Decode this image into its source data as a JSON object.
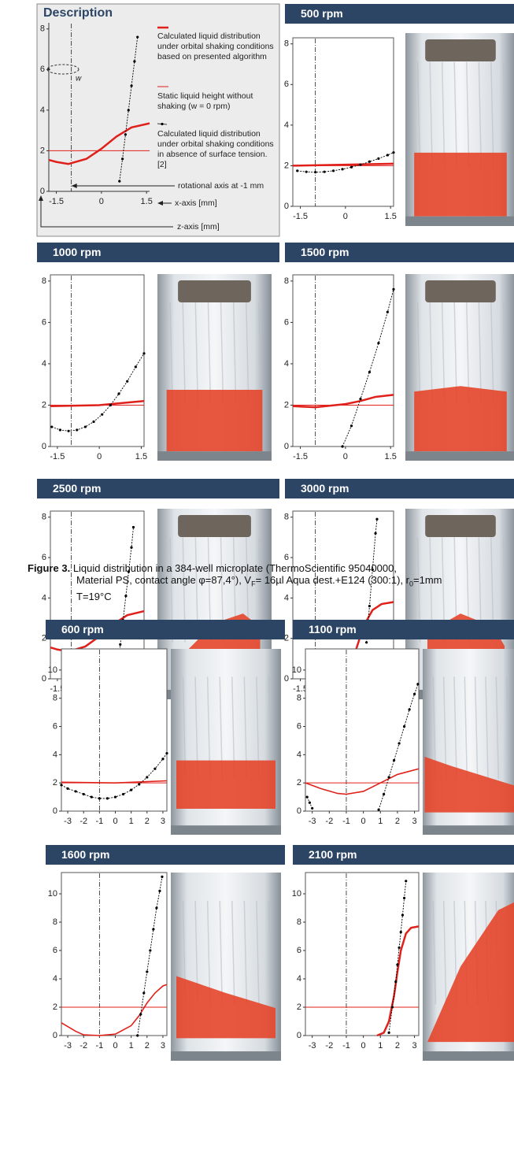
{
  "chart_data": [
    {
      "type": "line",
      "title": "Description",
      "xlim": [
        -1.75,
        1.6
      ],
      "ylim": [
        0,
        8.3
      ],
      "xticks": [
        -1.5,
        0,
        1.5
      ],
      "yticks": [
        0,
        2,
        4,
        6,
        8
      ],
      "frame": false,
      "reference_x": -1,
      "series": [
        {
          "name": "Calculated liquid distribution under orbital shaking conditions based on presented algorithm",
          "color": "#e0201b",
          "style": "bold-line",
          "x": [
            -1.75,
            -1.5,
            -1.1,
            -0.5,
            0,
            0.5,
            1,
            1.6
          ],
          "values": [
            1.55,
            1.45,
            1.35,
            1.6,
            2.1,
            2.7,
            3.15,
            3.35
          ]
        },
        {
          "name": "Static liquid height without shaking (w = 0 rpm)",
          "color": "#e0201b",
          "style": "thin-line",
          "x": [
            -1.75,
            1.6
          ],
          "values": [
            2,
            2
          ]
        },
        {
          "name": "Calculated liquid distribution under orbital shaking conditions in absence of surface tension. [2]",
          "color": "#000000",
          "style": "dotted-markers",
          "x": [
            0.6,
            0.7,
            0.8,
            0.9,
            1.0,
            1.1,
            1.2
          ],
          "values": [
            0.5,
            1.6,
            2.8,
            4.0,
            5.2,
            6.4,
            7.6
          ]
        }
      ],
      "annotations": {
        "rotation": "w",
        "axis_note": "rotational axis at -1 mm",
        "x_axis": "x-axis [mm]",
        "z_axis": "z-axis [mm]"
      }
    },
    {
      "type": "line",
      "title": "500 rpm",
      "xlim": [
        -1.75,
        1.6
      ],
      "ylim": [
        0,
        8.3
      ],
      "xticks": [
        -1.5,
        0,
        1.5
      ],
      "yticks": [
        0,
        2,
        4,
        6,
        8
      ],
      "frame": true,
      "reference_x": -1,
      "series": [
        {
          "color": "#e0201b",
          "style": "bold-line",
          "x": [
            -1.75,
            0,
            1.6
          ],
          "values": [
            2.0,
            2.05,
            2.1
          ]
        },
        {
          "color": "#e0201b",
          "style": "thin-line",
          "x": [
            -1.75,
            1.6
          ],
          "values": [
            2,
            2
          ]
        },
        {
          "color": "#000000",
          "style": "dotted-markers",
          "x": [
            -1.6,
            -1.3,
            -1.0,
            -0.7,
            -0.4,
            -0.1,
            0.2,
            0.5,
            0.8,
            1.1,
            1.4,
            1.6
          ],
          "values": [
            1.75,
            1.7,
            1.68,
            1.7,
            1.75,
            1.83,
            1.93,
            2.05,
            2.2,
            2.35,
            2.52,
            2.65
          ]
        }
      ]
    },
    {
      "type": "line",
      "title": "1000 rpm",
      "xlim": [
        -1.75,
        1.6
      ],
      "ylim": [
        0,
        8.3
      ],
      "xticks": [
        -1.5,
        0,
        1.5
      ],
      "yticks": [
        0,
        2,
        4,
        6,
        8
      ],
      "frame": true,
      "reference_x": -1,
      "series": [
        {
          "color": "#e0201b",
          "style": "bold-line",
          "x": [
            -1.75,
            0,
            1.6
          ],
          "values": [
            1.95,
            2.0,
            2.2
          ]
        },
        {
          "color": "#e0201b",
          "style": "thin-line",
          "x": [
            -1.75,
            1.6
          ],
          "values": [
            2,
            2
          ]
        },
        {
          "color": "#000000",
          "style": "dotted-markers",
          "x": [
            -1.7,
            -1.4,
            -1.1,
            -0.8,
            -0.5,
            -0.2,
            0.1,
            0.4,
            0.7,
            1.0,
            1.3,
            1.6
          ],
          "values": [
            0.95,
            0.8,
            0.75,
            0.8,
            0.95,
            1.2,
            1.55,
            2.0,
            2.55,
            3.15,
            3.85,
            4.5
          ]
        }
      ]
    },
    {
      "type": "line",
      "title": "1500 rpm",
      "xlim": [
        -1.75,
        1.6
      ],
      "ylim": [
        0,
        8.3
      ],
      "xticks": [
        -1.5,
        0,
        1.5
      ],
      "yticks": [
        0,
        2,
        4,
        6,
        8
      ],
      "frame": true,
      "reference_x": -1,
      "series": [
        {
          "color": "#e0201b",
          "style": "bold-line",
          "x": [
            -1.75,
            -1,
            0,
            0.5,
            1,
            1.6
          ],
          "values": [
            1.95,
            1.9,
            2.05,
            2.2,
            2.4,
            2.5
          ]
        },
        {
          "color": "#e0201b",
          "style": "thin-line",
          "x": [
            -1.75,
            1.6
          ],
          "values": [
            2,
            2
          ]
        },
        {
          "color": "#000000",
          "style": "dotted-markers",
          "x": [
            -0.1,
            0.2,
            0.5,
            0.8,
            1.1,
            1.4,
            1.6
          ],
          "values": [
            0,
            1.0,
            2.3,
            3.6,
            5.0,
            6.5,
            7.6
          ]
        }
      ]
    },
    {
      "type": "line",
      "title": "2500 rpm",
      "xlim": [
        -1.75,
        1.6
      ],
      "ylim": [
        0,
        8.3
      ],
      "xticks": [
        -1.5,
        0,
        1.5
      ],
      "yticks": [
        0,
        2,
        4,
        6,
        8
      ],
      "frame": true,
      "reference_x": -1,
      "series": [
        {
          "color": "#e0201b",
          "style": "bold-line",
          "x": [
            -1.75,
            -1.5,
            -1.1,
            -0.5,
            0,
            0.5,
            1,
            1.6
          ],
          "values": [
            1.55,
            1.45,
            1.35,
            1.6,
            2.1,
            2.7,
            3.15,
            3.35
          ]
        },
        {
          "color": "#e0201b",
          "style": "thin-line",
          "x": [
            -1.75,
            1.6
          ],
          "values": [
            2,
            2
          ]
        },
        {
          "color": "#000000",
          "style": "dotted-markers",
          "x": [
            0.65,
            0.75,
            0.85,
            0.95,
            1.05,
            1.15,
            1.22
          ],
          "values": [
            0.6,
            1.7,
            2.9,
            4.1,
            5.3,
            6.5,
            7.5
          ]
        }
      ]
    },
    {
      "type": "line",
      "title": "3000 rpm",
      "xlim": [
        -1.75,
        1.6
      ],
      "ylim": [
        0,
        8.3
      ],
      "xticks": [
        -1.5,
        0,
        1.5
      ],
      "yticks": [
        0,
        2,
        4,
        6,
        8
      ],
      "frame": true,
      "reference_x": -1,
      "series": [
        {
          "color": "#e0201b",
          "style": "bold-line",
          "x": [
            -0.8,
            -0.3,
            0,
            0.3,
            0.6,
            0.9,
            1.2,
            1.6
          ],
          "values": [
            0,
            0.1,
            0.4,
            1.2,
            2.6,
            3.4,
            3.7,
            3.8
          ]
        },
        {
          "color": "#e0201b",
          "style": "thin-line",
          "x": [
            -1.75,
            1.6
          ],
          "values": [
            2,
            2
          ]
        },
        {
          "color": "#000000",
          "style": "dotted-markers",
          "x": [
            0.7,
            0.8,
            0.9,
            1.0,
            1.05
          ],
          "values": [
            1.8,
            3.6,
            5.4,
            7.2,
            7.9
          ]
        }
      ]
    },
    {
      "type": "line",
      "title": "600 rpm",
      "xlim": [
        -3.4,
        3.25
      ],
      "ylim": [
        0,
        11.5
      ],
      "xticks": [
        -3,
        -2,
        -1,
        0,
        1,
        2,
        3
      ],
      "yticks": [
        0,
        2,
        4,
        6,
        8,
        10
      ],
      "frame": true,
      "reference_x": -1,
      "series": [
        {
          "color": "#e0201b",
          "style": "line",
          "x": [
            -3.4,
            0,
            3.25
          ],
          "values": [
            2.05,
            2.0,
            2.15
          ]
        },
        {
          "color": "#e0201b",
          "style": "thin-line",
          "x": [
            -3.4,
            3.25
          ],
          "values": [
            2,
            2
          ]
        },
        {
          "color": "#000000",
          "style": "dotted-markers",
          "x": [
            -3.4,
            -3,
            -2.5,
            -2,
            -1.5,
            -1,
            -0.5,
            0,
            0.5,
            1,
            1.5,
            2,
            2.5,
            3,
            3.25
          ],
          "values": [
            1.85,
            1.6,
            1.4,
            1.2,
            1.0,
            0.9,
            0.9,
            1.0,
            1.2,
            1.5,
            1.9,
            2.4,
            3.0,
            3.7,
            4.1
          ]
        }
      ]
    },
    {
      "type": "line",
      "title": "1100 rpm",
      "xlim": [
        -3.4,
        3.25
      ],
      "ylim": [
        0,
        11.5
      ],
      "xticks": [
        -3,
        -2,
        -1,
        0,
        1,
        2,
        3
      ],
      "yticks": [
        0,
        2,
        4,
        6,
        8,
        10
      ],
      "frame": true,
      "reference_x": -1,
      "series": [
        {
          "color": "#e0201b",
          "style": "line",
          "x": [
            -3.4,
            -2.5,
            -1.5,
            -1,
            0,
            1,
            2,
            3.25
          ],
          "values": [
            2.0,
            1.6,
            1.25,
            1.2,
            1.4,
            2.0,
            2.6,
            3.0
          ]
        },
        {
          "color": "#e0201b",
          "style": "thin-line",
          "x": [
            -3.4,
            3.25
          ],
          "values": [
            2,
            2
          ]
        },
        {
          "color": "#000000",
          "style": "dotted-markers",
          "x": [
            -3.3,
            -3.15,
            -3.0,
            null,
            0.9,
            1.2,
            1.5,
            1.8,
            2.1,
            2.4,
            2.7,
            3.0,
            3.2
          ],
          "values": [
            1.0,
            0.6,
            0.2,
            null,
            0.1,
            1.2,
            2.4,
            3.6,
            4.8,
            6.0,
            7.2,
            8.3,
            9.0
          ]
        }
      ]
    },
    {
      "type": "line",
      "title": "1600 rpm",
      "xlim": [
        -3.4,
        3.25
      ],
      "ylim": [
        0,
        11.5
      ],
      "xticks": [
        -3,
        -2,
        -1,
        0,
        1,
        2,
        3
      ],
      "yticks": [
        0,
        2,
        4,
        6,
        8,
        10
      ],
      "frame": true,
      "reference_x": -1,
      "series": [
        {
          "color": "#e0201b",
          "style": "line",
          "x": [
            -3.4,
            -2.5,
            -2,
            -1,
            0,
            1,
            1.5,
            2,
            2.5,
            3,
            3.25
          ],
          "values": [
            0.9,
            0.3,
            0.05,
            0,
            0.1,
            0.7,
            1.4,
            2.3,
            3.0,
            3.5,
            3.6
          ]
        },
        {
          "color": "#e0201b",
          "style": "thin-line",
          "x": [
            -3.4,
            3.25
          ],
          "values": [
            2,
            2
          ]
        },
        {
          "color": "#000000",
          "style": "dotted-markers",
          "x": [
            1.4,
            1.6,
            1.8,
            2.0,
            2.2,
            2.4,
            2.6,
            2.8,
            2.95
          ],
          "values": [
            0,
            1.5,
            3.0,
            4.5,
            6.0,
            7.5,
            9.0,
            10.2,
            11.2
          ]
        }
      ]
    },
    {
      "type": "line",
      "title": "2100 rpm",
      "xlim": [
        -3.4,
        3.25
      ],
      "ylim": [
        0,
        11.5
      ],
      "xticks": [
        -3,
        -2,
        -1,
        0,
        1,
        2,
        3
      ],
      "yticks": [
        0,
        2,
        4,
        6,
        8,
        10
      ],
      "frame": true,
      "reference_x": -1,
      "series": [
        {
          "color": "#e0201b",
          "style": "bold-line",
          "x": [
            0.8,
            1.2,
            1.5,
            1.8,
            2.0,
            2.2,
            2.5,
            2.8,
            3.25
          ],
          "values": [
            0,
            0.2,
            1.0,
            2.8,
            4.5,
            6.0,
            7.2,
            7.6,
            7.7
          ]
        },
        {
          "color": "#e0201b",
          "style": "thin-line",
          "x": [
            -3.4,
            3.25
          ],
          "values": [
            2,
            2
          ]
        },
        {
          "color": "#000000",
          "style": "dotted-markers",
          "x": [
            1.5,
            1.7,
            1.9,
            2.0,
            2.1,
            2.2,
            2.3,
            2.4,
            2.5
          ],
          "values": [
            0.2,
            2.0,
            3.8,
            5.0,
            6.2,
            7.3,
            8.5,
            9.7,
            10.9
          ]
        }
      ]
    }
  ],
  "caption": {
    "label": "Figure 3.",
    "parts": [
      "Liquid distribution in a 384-well microplate (ThermoScientific 95040000,",
      "Material PS, contact angle φ=87,4°), V",
      "F",
      "= 16µl Aqua dest.+E124 (300:1), r",
      "0",
      "=1mm",
      "T=19°C"
    ]
  }
}
